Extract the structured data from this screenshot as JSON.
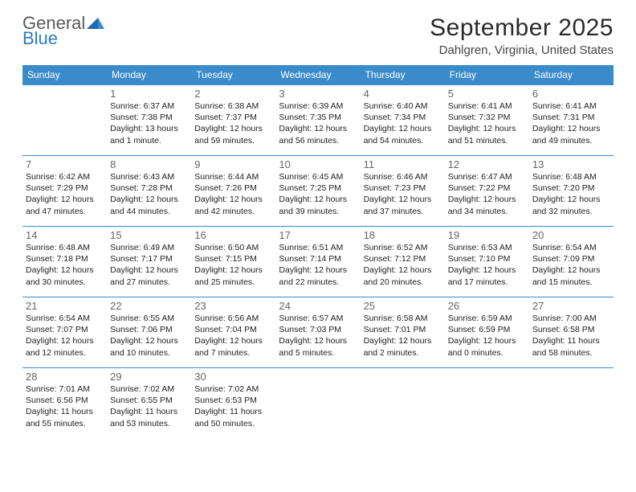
{
  "logo": {
    "word1": "General",
    "word2": "Blue"
  },
  "title": "September 2025",
  "location": "Dahlgren, Virginia, United States",
  "colors": {
    "header_bg": "#3a8bca",
    "header_text": "#ffffff",
    "rule": "#3a8bca",
    "logo_gray": "#5a5a5a",
    "logo_blue": "#2e7cc0"
  },
  "dow": [
    "Sunday",
    "Monday",
    "Tuesday",
    "Wednesday",
    "Thursday",
    "Friday",
    "Saturday"
  ],
  "weeks": [
    [
      null,
      {
        "n": "1",
        "sr": "Sunrise: 6:37 AM",
        "ss": "Sunset: 7:38 PM",
        "dl": "Daylight: 13 hours and 1 minute."
      },
      {
        "n": "2",
        "sr": "Sunrise: 6:38 AM",
        "ss": "Sunset: 7:37 PM",
        "dl": "Daylight: 12 hours and 59 minutes."
      },
      {
        "n": "3",
        "sr": "Sunrise: 6:39 AM",
        "ss": "Sunset: 7:35 PM",
        "dl": "Daylight: 12 hours and 56 minutes."
      },
      {
        "n": "4",
        "sr": "Sunrise: 6:40 AM",
        "ss": "Sunset: 7:34 PM",
        "dl": "Daylight: 12 hours and 54 minutes."
      },
      {
        "n": "5",
        "sr": "Sunrise: 6:41 AM",
        "ss": "Sunset: 7:32 PM",
        "dl": "Daylight: 12 hours and 51 minutes."
      },
      {
        "n": "6",
        "sr": "Sunrise: 6:41 AM",
        "ss": "Sunset: 7:31 PM",
        "dl": "Daylight: 12 hours and 49 minutes."
      }
    ],
    [
      {
        "n": "7",
        "sr": "Sunrise: 6:42 AM",
        "ss": "Sunset: 7:29 PM",
        "dl": "Daylight: 12 hours and 47 minutes."
      },
      {
        "n": "8",
        "sr": "Sunrise: 6:43 AM",
        "ss": "Sunset: 7:28 PM",
        "dl": "Daylight: 12 hours and 44 minutes."
      },
      {
        "n": "9",
        "sr": "Sunrise: 6:44 AM",
        "ss": "Sunset: 7:26 PM",
        "dl": "Daylight: 12 hours and 42 minutes."
      },
      {
        "n": "10",
        "sr": "Sunrise: 6:45 AM",
        "ss": "Sunset: 7:25 PM",
        "dl": "Daylight: 12 hours and 39 minutes."
      },
      {
        "n": "11",
        "sr": "Sunrise: 6:46 AM",
        "ss": "Sunset: 7:23 PM",
        "dl": "Daylight: 12 hours and 37 minutes."
      },
      {
        "n": "12",
        "sr": "Sunrise: 6:47 AM",
        "ss": "Sunset: 7:22 PM",
        "dl": "Daylight: 12 hours and 34 minutes."
      },
      {
        "n": "13",
        "sr": "Sunrise: 6:48 AM",
        "ss": "Sunset: 7:20 PM",
        "dl": "Daylight: 12 hours and 32 minutes."
      }
    ],
    [
      {
        "n": "14",
        "sr": "Sunrise: 6:48 AM",
        "ss": "Sunset: 7:18 PM",
        "dl": "Daylight: 12 hours and 30 minutes."
      },
      {
        "n": "15",
        "sr": "Sunrise: 6:49 AM",
        "ss": "Sunset: 7:17 PM",
        "dl": "Daylight: 12 hours and 27 minutes."
      },
      {
        "n": "16",
        "sr": "Sunrise: 6:50 AM",
        "ss": "Sunset: 7:15 PM",
        "dl": "Daylight: 12 hours and 25 minutes."
      },
      {
        "n": "17",
        "sr": "Sunrise: 6:51 AM",
        "ss": "Sunset: 7:14 PM",
        "dl": "Daylight: 12 hours and 22 minutes."
      },
      {
        "n": "18",
        "sr": "Sunrise: 6:52 AM",
        "ss": "Sunset: 7:12 PM",
        "dl": "Daylight: 12 hours and 20 minutes."
      },
      {
        "n": "19",
        "sr": "Sunrise: 6:53 AM",
        "ss": "Sunset: 7:10 PM",
        "dl": "Daylight: 12 hours and 17 minutes."
      },
      {
        "n": "20",
        "sr": "Sunrise: 6:54 AM",
        "ss": "Sunset: 7:09 PM",
        "dl": "Daylight: 12 hours and 15 minutes."
      }
    ],
    [
      {
        "n": "21",
        "sr": "Sunrise: 6:54 AM",
        "ss": "Sunset: 7:07 PM",
        "dl": "Daylight: 12 hours and 12 minutes."
      },
      {
        "n": "22",
        "sr": "Sunrise: 6:55 AM",
        "ss": "Sunset: 7:06 PM",
        "dl": "Daylight: 12 hours and 10 minutes."
      },
      {
        "n": "23",
        "sr": "Sunrise: 6:56 AM",
        "ss": "Sunset: 7:04 PM",
        "dl": "Daylight: 12 hours and 7 minutes."
      },
      {
        "n": "24",
        "sr": "Sunrise: 6:57 AM",
        "ss": "Sunset: 7:03 PM",
        "dl": "Daylight: 12 hours and 5 minutes."
      },
      {
        "n": "25",
        "sr": "Sunrise: 6:58 AM",
        "ss": "Sunset: 7:01 PM",
        "dl": "Daylight: 12 hours and 2 minutes."
      },
      {
        "n": "26",
        "sr": "Sunrise: 6:59 AM",
        "ss": "Sunset: 6:59 PM",
        "dl": "Daylight: 12 hours and 0 minutes."
      },
      {
        "n": "27",
        "sr": "Sunrise: 7:00 AM",
        "ss": "Sunset: 6:58 PM",
        "dl": "Daylight: 11 hours and 58 minutes."
      }
    ],
    [
      {
        "n": "28",
        "sr": "Sunrise: 7:01 AM",
        "ss": "Sunset: 6:56 PM",
        "dl": "Daylight: 11 hours and 55 minutes."
      },
      {
        "n": "29",
        "sr": "Sunrise: 7:02 AM",
        "ss": "Sunset: 6:55 PM",
        "dl": "Daylight: 11 hours and 53 minutes."
      },
      {
        "n": "30",
        "sr": "Sunrise: 7:02 AM",
        "ss": "Sunset: 6:53 PM",
        "dl": "Daylight: 11 hours and 50 minutes."
      },
      null,
      null,
      null,
      null
    ]
  ]
}
